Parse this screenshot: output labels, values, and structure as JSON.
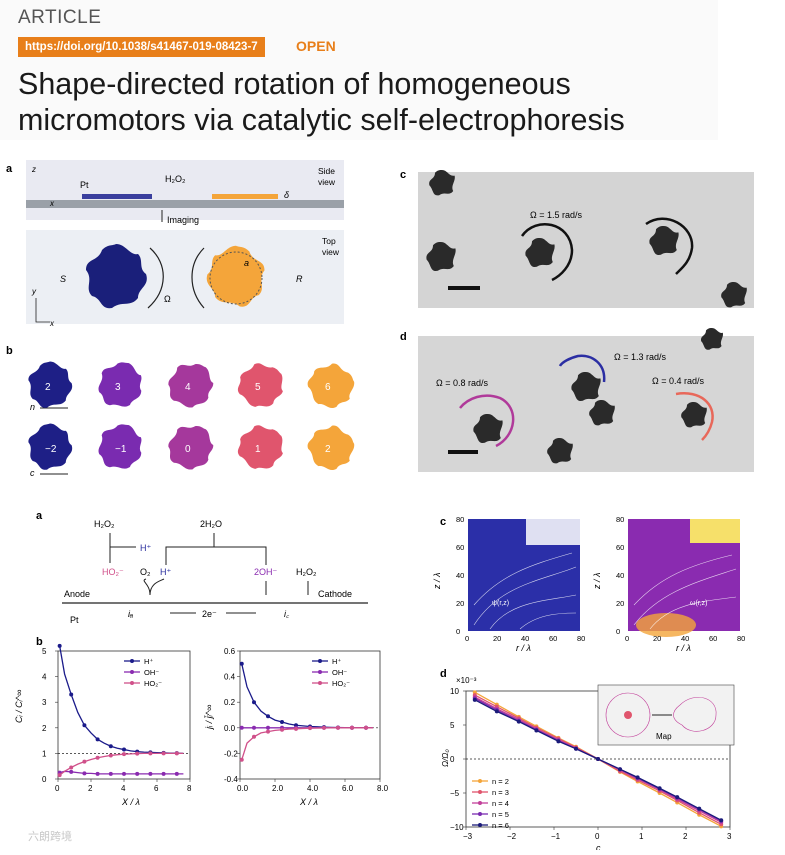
{
  "header": {
    "article_type": "ARTICLE",
    "doi": "https://doi.org/10.1038/s41467-019-08423-7",
    "open_access": "OPEN",
    "title_line1": "Shape-directed rotation of homogeneous",
    "title_line2": "micromotors via catalytic self-electrophoresis"
  },
  "figure1": {
    "panel_a": {
      "letter": "a",
      "pt_label": "Pt",
      "h2o2_label": "H₂O₂",
      "side_view": [
        "Side",
        "view"
      ],
      "top_view": [
        "Top",
        "view"
      ],
      "delta": "δ",
      "imaging": "Imaging",
      "axis_z": "z",
      "axis_x": "x",
      "axis_y": "y",
      "s_label": "S",
      "r_label": "R",
      "omega_label": "Ω",
      "a_label": "a",
      "colors": {
        "blue_motor": "#1a1f7a",
        "orange_motor": "#f4a53a",
        "pt_bar": "#3a3f9e"
      }
    },
    "panel_b": {
      "letter": "b",
      "row1_values": [
        "2",
        "3",
        "4",
        "5",
        "6"
      ],
      "row1_axis": "n",
      "row2_values": [
        "−2",
        "−1",
        "0",
        "1",
        "2"
      ],
      "row2_axis": "c",
      "row1_colors": [
        "#1e1f86",
        "#7a2bb0",
        "#a5389c",
        "#e0556d",
        "#f4a53a"
      ],
      "row2_colors": [
        "#1e1f86",
        "#7a2bb0",
        "#a5389c",
        "#e0556d",
        "#f4a53a"
      ]
    },
    "panel_c": {
      "letter": "c",
      "omega": "Ω = 1.5 rad/s"
    },
    "panel_d": {
      "letter": "d",
      "omega_left": "Ω = 0.8 rad/s",
      "omega_center": "Ω = 1.3 rad/s",
      "omega_right": "Ω = 0.4 rad/s",
      "arrow_colors": [
        "#b03a9a",
        "#2b2ea3",
        "#e8685a"
      ]
    }
  },
  "figure2": {
    "panel_a": {
      "letter": "a",
      "species": [
        "H₂O₂",
        "H⁺",
        "2H₂O",
        "HO₂⁻",
        "O₂",
        "H⁺",
        "2OH⁻",
        "H₂O₂"
      ],
      "anode": "Anode",
      "cathode": "Cathode",
      "pt": "Pt",
      "ia": "iₐ",
      "electrons": "2e⁻",
      "ic": "i꜀"
    },
    "panel_b": {
      "letter": "b",
      "left_ylabel": "Cᵢ / Cᵢ^∞",
      "xlabel": "X / λ",
      "right_ylabel": "jᵢ / j̄ᵢ^∞",
      "legend": [
        "H⁺",
        "OH⁻",
        "HO₂⁻"
      ]
    },
    "panel_c": {
      "letter": "c",
      "ylabel": "z / λ",
      "xlabel": "r / λ",
      "left_annotation": "ψ(r,z)",
      "right_annotation": "ω(r,z)",
      "ticks": [
        "0",
        "20",
        "40",
        "60",
        "80"
      ]
    },
    "panel_d": {
      "letter": "d",
      "exponent": "×10⁻³",
      "ylabel": "Ω/Ω₀",
      "xlabel": "c",
      "inset_label": "Map",
      "legend": [
        "n = 2",
        "n = 3",
        "n = 4",
        "n = 5",
        "n = 6"
      ]
    }
  },
  "watermark": "六朗跨境",
  "chart_data": [
    {
      "type": "line",
      "title": "",
      "xlabel": "X / λ",
      "ylabel": "Cᵢ / Cᵢ^∞",
      "xlim": [
        0,
        8
      ],
      "ylim": [
        0,
        5
      ],
      "x": [
        0.1,
        0.4,
        0.8,
        1.2,
        1.6,
        2.0,
        2.4,
        2.8,
        3.2,
        3.6,
        4.0,
        4.4,
        4.8,
        5.2,
        5.6,
        6.0,
        6.4,
        6.8,
        7.2,
        7.6
      ],
      "series": [
        {
          "name": "H⁺",
          "color": "#1b1b8a",
          "values": [
            5.2,
            4.1,
            3.3,
            2.6,
            2.1,
            1.8,
            1.55,
            1.4,
            1.28,
            1.2,
            1.15,
            1.1,
            1.07,
            1.05,
            1.04,
            1.03,
            1.02,
            1.01,
            1.01,
            1.0
          ]
        },
        {
          "name": "OH⁻",
          "color": "#8a2bb0",
          "values": [
            0.25,
            0.3,
            0.28,
            0.25,
            0.22,
            0.22,
            0.2,
            0.2,
            0.2,
            0.2,
            0.2,
            0.2,
            0.2,
            0.2,
            0.2,
            0.2,
            0.2,
            0.2,
            0.2,
            0.2
          ]
        },
        {
          "name": "HO₂⁻",
          "color": "#d0508a",
          "values": [
            0.15,
            0.3,
            0.45,
            0.58,
            0.68,
            0.76,
            0.83,
            0.88,
            0.92,
            0.95,
            0.97,
            0.98,
            0.99,
            1.0,
            1.0,
            1.0,
            1.0,
            1.0,
            1.0,
            1.0
          ]
        }
      ],
      "reference_line": 1
    },
    {
      "type": "line",
      "title": "",
      "xlabel": "X / λ",
      "ylabel": "jᵢ / j̄ᵢ^∞",
      "xlim": [
        0,
        8
      ],
      "ylim": [
        -0.4,
        0.6
      ],
      "x": [
        0.1,
        0.4,
        0.8,
        1.2,
        1.6,
        2.0,
        2.4,
        2.8,
        3.2,
        3.6,
        4.0,
        4.4,
        4.8,
        5.2,
        5.6,
        6.0,
        6.4,
        6.8,
        7.2,
        7.6
      ],
      "series": [
        {
          "name": "H⁺",
          "color": "#1b1b8a",
          "values": [
            0.5,
            0.32,
            0.2,
            0.13,
            0.09,
            0.06,
            0.045,
            0.03,
            0.02,
            0.015,
            0.01,
            0.008,
            0.005,
            0.003,
            0.002,
            0.001,
            0,
            0,
            0,
            0
          ]
        },
        {
          "name": "OH⁻",
          "color": "#8a2bb0",
          "values": [
            0.0,
            0.0,
            0.0,
            0.0,
            0.0,
            0.0,
            0.0,
            0.0,
            0.0,
            0.0,
            0.0,
            0.0,
            0.0,
            0.0,
            0.0,
            0.0,
            0.0,
            0.0,
            0.0,
            0.0
          ]
        },
        {
          "name": "HO₂⁻",
          "color": "#d0508a",
          "values": [
            -0.25,
            -0.12,
            -0.07,
            -0.04,
            -0.03,
            -0.02,
            -0.015,
            -0.01,
            -0.008,
            -0.005,
            -0.003,
            -0.002,
            -0.001,
            0,
            0,
            0,
            0,
            0,
            0,
            0
          ]
        }
      ]
    },
    {
      "type": "line",
      "title": "",
      "xlabel": "c",
      "ylabel": "Ω/Ω₀",
      "xlim": [
        -3,
        3
      ],
      "ylim": [
        -10,
        10
      ],
      "x": [
        -2.8,
        -2.3,
        -1.8,
        -1.4,
        -0.9,
        -0.5,
        0,
        0.5,
        0.9,
        1.4,
        1.8,
        2.3,
        2.8
      ],
      "series": [
        {
          "name": "n = 2",
          "color": "#f4a53a",
          "values": [
            9.8,
            8.0,
            6.2,
            4.8,
            3.1,
            1.8,
            0,
            -1.9,
            -3.3,
            -5.0,
            -6.4,
            -8.2,
            -9.9
          ]
        },
        {
          "name": "n = 3",
          "color": "#e0556d",
          "values": [
            9.4,
            7.7,
            6.0,
            4.6,
            3.0,
            1.7,
            0,
            -1.8,
            -3.1,
            -4.7,
            -6.1,
            -7.9,
            -9.6
          ]
        },
        {
          "name": "n = 4",
          "color": "#c2409a",
          "values": [
            9.1,
            7.4,
            5.8,
            4.4,
            2.8,
            1.6,
            0,
            -1.6,
            -2.9,
            -4.5,
            -5.9,
            -7.6,
            -9.3
          ]
        },
        {
          "name": "n = 5",
          "color": "#7a2bb0",
          "values": [
            8.9,
            7.2,
            5.6,
            4.3,
            2.7,
            1.5,
            0,
            -1.5,
            -2.8,
            -4.4,
            -5.7,
            -7.4,
            -9.1
          ]
        },
        {
          "name": "n = 6",
          "color": "#1b1b7a",
          "values": [
            8.7,
            7.0,
            5.5,
            4.2,
            2.6,
            1.5,
            0,
            -1.5,
            -2.7,
            -4.3,
            -5.6,
            -7.3,
            -9.0
          ]
        }
      ]
    }
  ]
}
